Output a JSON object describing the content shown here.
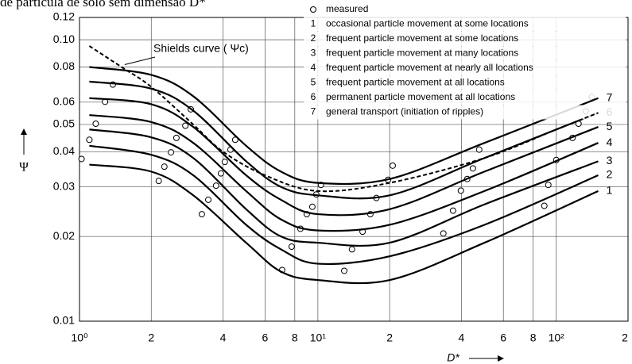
{
  "caption": "de partícula de solo sem dimensão D*",
  "chart_data": {
    "type": "line",
    "xlabel": "D*",
    "ylabel": "Ψ",
    "xscale": "log",
    "yscale": "log",
    "grid": true,
    "legend": "upper right",
    "xlim": [
      1,
      200
    ],
    "ylim": [
      0.01,
      0.12
    ],
    "xticks": [
      {
        "value": 1,
        "label": "10⁰"
      },
      2,
      4,
      6,
      8,
      {
        "value": 10,
        "label": "10¹"
      },
      {
        "value": 20,
        "label": "2"
      },
      {
        "value": 40,
        "label": "4"
      },
      {
        "value": 60,
        "label": "6"
      },
      {
        "value": 80,
        "label": "8"
      },
      {
        "value": 100,
        "label": "10²"
      },
      {
        "value": 200,
        "label": "2"
      }
    ],
    "yticks": [
      0.01,
      0.02,
      0.03,
      0.04,
      0.05,
      0.06,
      0.08,
      {
        "value": 0.1,
        "label": "0.10"
      },
      0.12
    ],
    "annotation": "Shields curve ( Ψc)",
    "series": [
      {
        "name": "measured",
        "style": "markers",
        "color": "#000000",
        "x": [
          1.02,
          1.1,
          1.17,
          1.28,
          1.38,
          2.15,
          2.27,
          2.42,
          2.55,
          2.78,
          2.93,
          3.26,
          3.47,
          3.74,
          3.92,
          4.07,
          4.3,
          4.5,
          7.08,
          7.76,
          8.45,
          8.98,
          9.48,
          9.85,
          10.3,
          12.9,
          13.9,
          15.4,
          16.6,
          17.6,
          19.7,
          20.6,
          33.6,
          36.9,
          39.8,
          42.3,
          44.7,
          47.5,
          89.1,
          92.6,
          100,
          117,
          124,
          133,
          141
        ],
        "values": [
          0.0377,
          0.0441,
          0.0503,
          0.0602,
          0.0693,
          0.0315,
          0.0354,
          0.0398,
          0.0448,
          0.0495,
          0.0566,
          0.024,
          0.027,
          0.0303,
          0.0335,
          0.0368,
          0.0407,
          0.0441,
          0.0152,
          0.0184,
          0.0213,
          0.024,
          0.0255,
          0.0282,
          0.0305,
          0.0151,
          0.018,
          0.0208,
          0.024,
          0.0274,
          0.0318,
          0.0357,
          0.0205,
          0.0247,
          0.0291,
          0.032,
          0.0349,
          0.0407,
          0.0257,
          0.0305,
          0.0374,
          0.0448,
          0.0503,
          0.0557,
          0.0626
        ]
      },
      {
        "label": "1",
        "name": "occasional particle movement at some locations",
        "style": "line",
        "color": "#000000",
        "x": [
          1.1,
          2,
          3,
          5,
          7,
          10,
          20,
          50,
          150
        ],
        "values": [
          0.036,
          0.034,
          0.028,
          0.019,
          0.015,
          0.014,
          0.014,
          0.019,
          0.029
        ]
      },
      {
        "label": "2",
        "name": "frequent particle movement at some locations",
        "style": "line",
        "color": "#000000",
        "x": [
          1.1,
          2,
          3,
          5,
          7,
          10,
          20,
          50,
          150
        ],
        "values": [
          0.042,
          0.039,
          0.033,
          0.022,
          0.018,
          0.016,
          0.017,
          0.022,
          0.033
        ]
      },
      {
        "label": "3",
        "name": "frequent particle movement at many locations",
        "style": "line",
        "color": "#000000",
        "x": [
          1.1,
          2,
          3,
          5,
          7,
          10,
          20,
          50,
          150
        ],
        "values": [
          0.048,
          0.045,
          0.038,
          0.025,
          0.02,
          0.019,
          0.019,
          0.026,
          0.037
        ]
      },
      {
        "label": "4",
        "name": "frequent particle movement at nearly all locations",
        "style": "line",
        "color": "#000000",
        "x": [
          1.1,
          2,
          3,
          5,
          7,
          10,
          20,
          50,
          150
        ],
        "values": [
          0.054,
          0.051,
          0.043,
          0.029,
          0.023,
          0.021,
          0.022,
          0.029,
          0.043
        ]
      },
      {
        "label": "5",
        "name": "frequent particle movement at all locations",
        "style": "line",
        "color": "#000000",
        "x": [
          1.1,
          2,
          3,
          5,
          7,
          10,
          20,
          50,
          150
        ],
        "values": [
          0.062,
          0.059,
          0.049,
          0.033,
          0.027,
          0.024,
          0.025,
          0.034,
          0.049
        ]
      },
      {
        "label": "6",
        "name": "permanent particle movement at all locations",
        "style": "line",
        "color": "#000000",
        "x": [
          1.1,
          2,
          3,
          5,
          7,
          10,
          20,
          50,
          150
        ],
        "values": [
          0.071,
          0.067,
          0.056,
          0.037,
          0.03,
          0.028,
          0.028,
          0.038,
          0.055
        ]
      },
      {
        "label": "7",
        "name": "general transport (initiation of ripples)",
        "style": "line",
        "color": "#000000",
        "x": [
          1.1,
          2,
          3,
          5,
          7,
          10,
          20,
          50,
          150
        ],
        "values": [
          0.08,
          0.075,
          0.063,
          0.042,
          0.034,
          0.031,
          0.032,
          0.043,
          0.062
        ]
      },
      {
        "style": "dashed",
        "color": "#000000",
        "x": [
          1.1,
          1.5,
          2,
          3,
          4,
          6,
          10,
          20,
          50,
          100,
          150
        ],
        "values": [
          0.095,
          0.08,
          0.068,
          0.05,
          0.04,
          0.033,
          0.029,
          0.031,
          0.038,
          0.048,
          0.055
        ]
      }
    ]
  }
}
